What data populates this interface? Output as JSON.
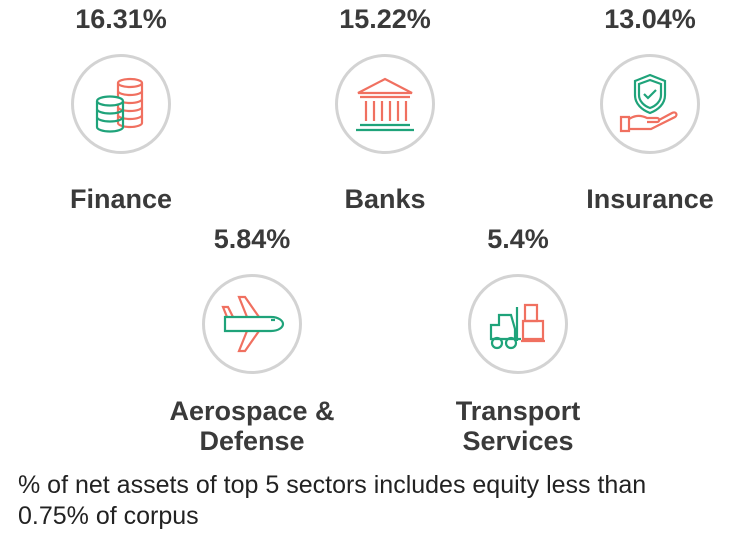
{
  "sectors": [
    {
      "name": "Finance",
      "percent": "16.31%",
      "icon": "coins-stack-icon"
    },
    {
      "name": "Banks",
      "percent": "15.22%",
      "icon": "bank-building-icon"
    },
    {
      "name": "Insurance",
      "percent": "13.04%",
      "icon": "shield-hand-icon"
    },
    {
      "name_line1": "Aerospace &",
      "name_line2": "Defense",
      "percent": "5.84%",
      "icon": "airplane-icon"
    },
    {
      "name_line1": "Transport",
      "name_line2": "Services",
      "percent": "5.4%",
      "icon": "forklift-icon"
    }
  ],
  "footnote": "% of net assets of top 5 sectors includes equity less than 0.75% of corpus",
  "colors": {
    "green": "#1fa37a",
    "red": "#f07060",
    "circle_border": "#d3d3d3",
    "text": "#3a3a3a"
  }
}
